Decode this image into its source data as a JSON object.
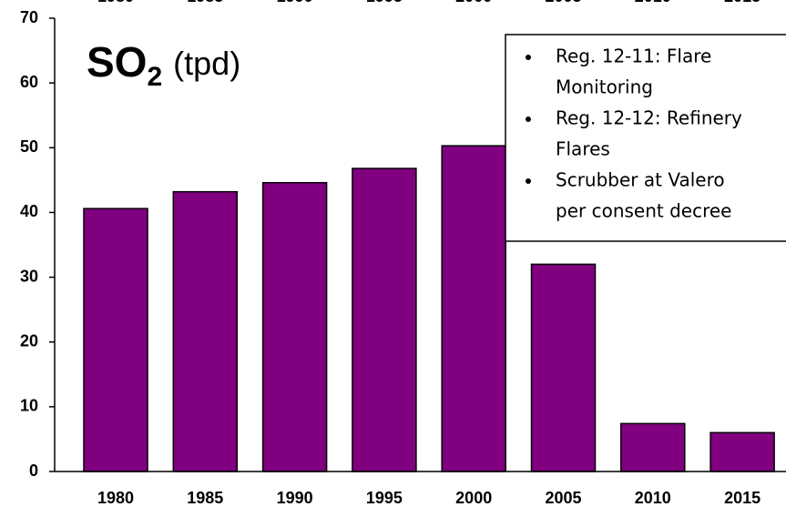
{
  "chart_data": {
    "type": "bar",
    "title": "SO",
    "title_subscript": "2",
    "title_unit": "(tpd)",
    "categories": [
      "1980",
      "1985",
      "1990",
      "1995",
      "2000",
      "2005",
      "2010",
      "2015"
    ],
    "values": [
      40.6,
      43.2,
      44.6,
      46.8,
      50.3,
      32.0,
      7.4,
      6.0
    ],
    "color": "#800080",
    "ylim": [
      0,
      70
    ],
    "yticks": [
      0,
      10,
      20,
      30,
      40,
      50,
      60,
      70
    ],
    "annotations": [
      [
        "Reg. 12-11: Flare",
        "Monitoring"
      ],
      [
        "Reg. 12-12: Refinery",
        "Flares"
      ],
      [
        "Scrubber at Valero",
        "per consent decree"
      ]
    ]
  }
}
